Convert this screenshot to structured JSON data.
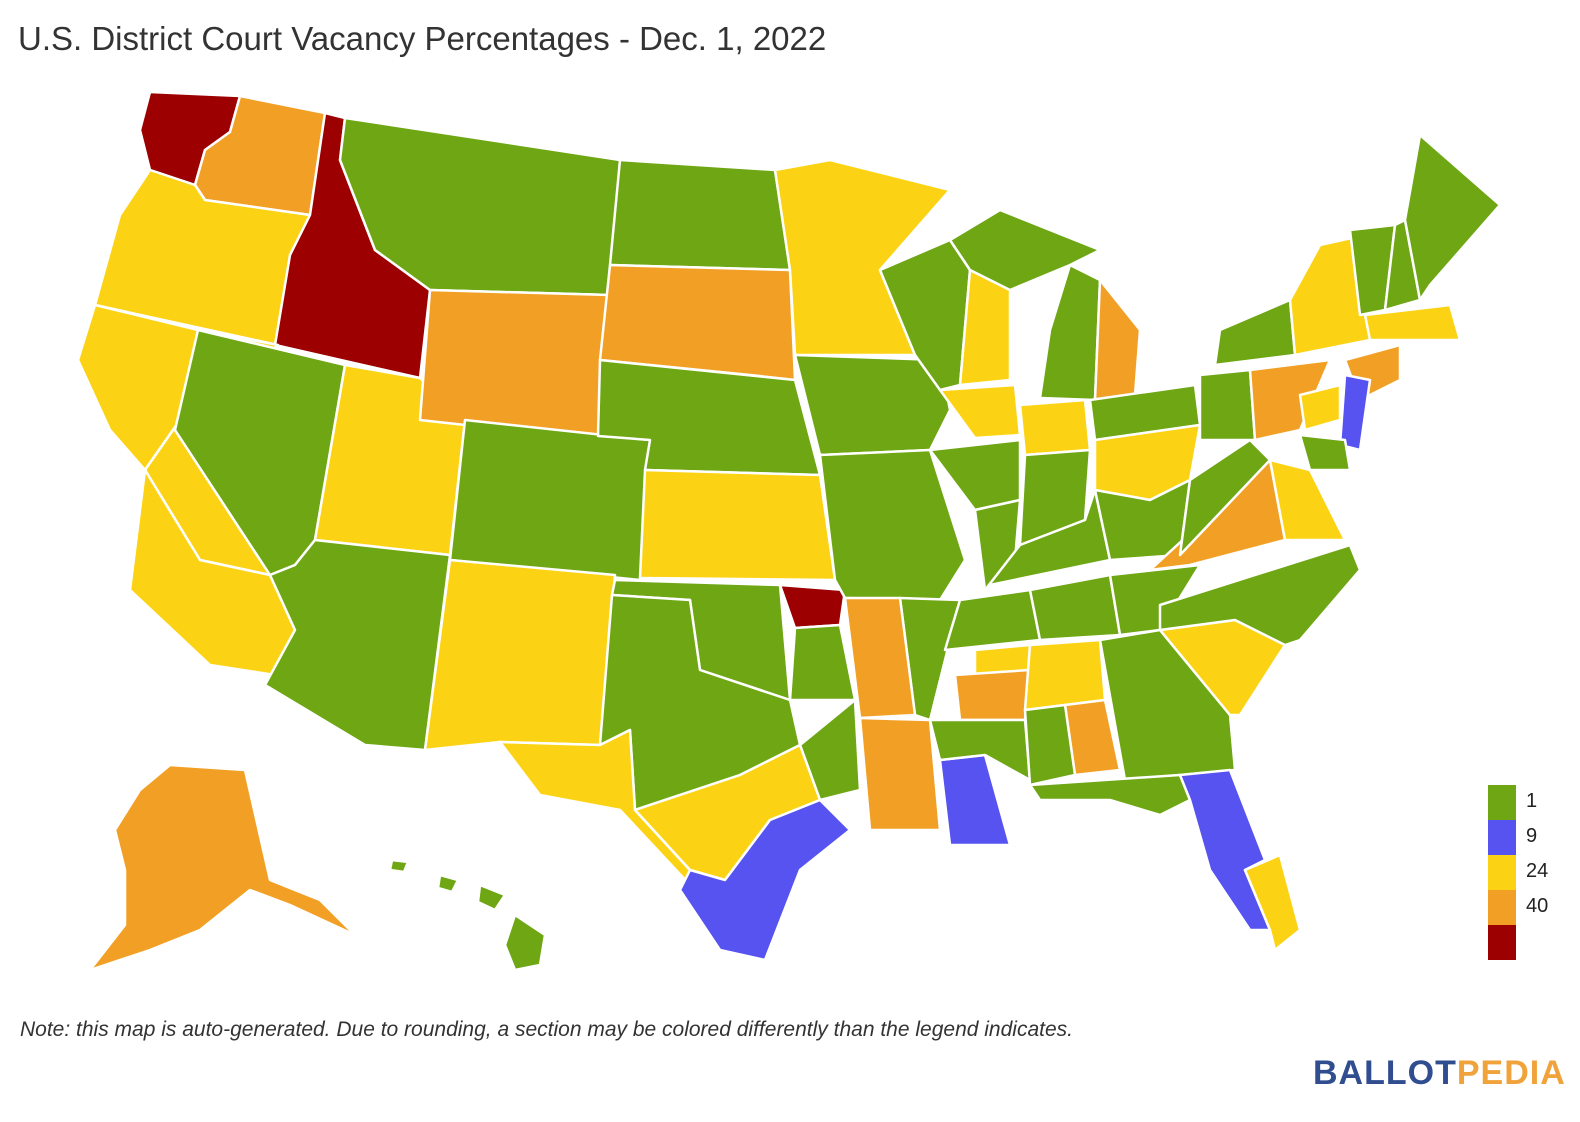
{
  "title": "U.S. District Court Vacancy Percentages - Dec. 1, 2022",
  "note": "Note: this map is auto-generated. Due to rounding, a section may be colored differently than the legend indicates.",
  "brand": {
    "part1": "BALLOT",
    "part2": "PEDIA",
    "color1": "#2f4d8f",
    "color2": "#f0a33a"
  },
  "colors": {
    "green": "#6ea614",
    "blue": "#5653f0",
    "yellow": "#fcd314",
    "orange": "#f2a025",
    "red": "#9c0000",
    "border": "#ffffff"
  },
  "legend": {
    "bins": [
      "green",
      "blue",
      "yellow",
      "orange",
      "red"
    ],
    "ticks": [
      "1",
      "9",
      "24",
      "40"
    ]
  }
}
